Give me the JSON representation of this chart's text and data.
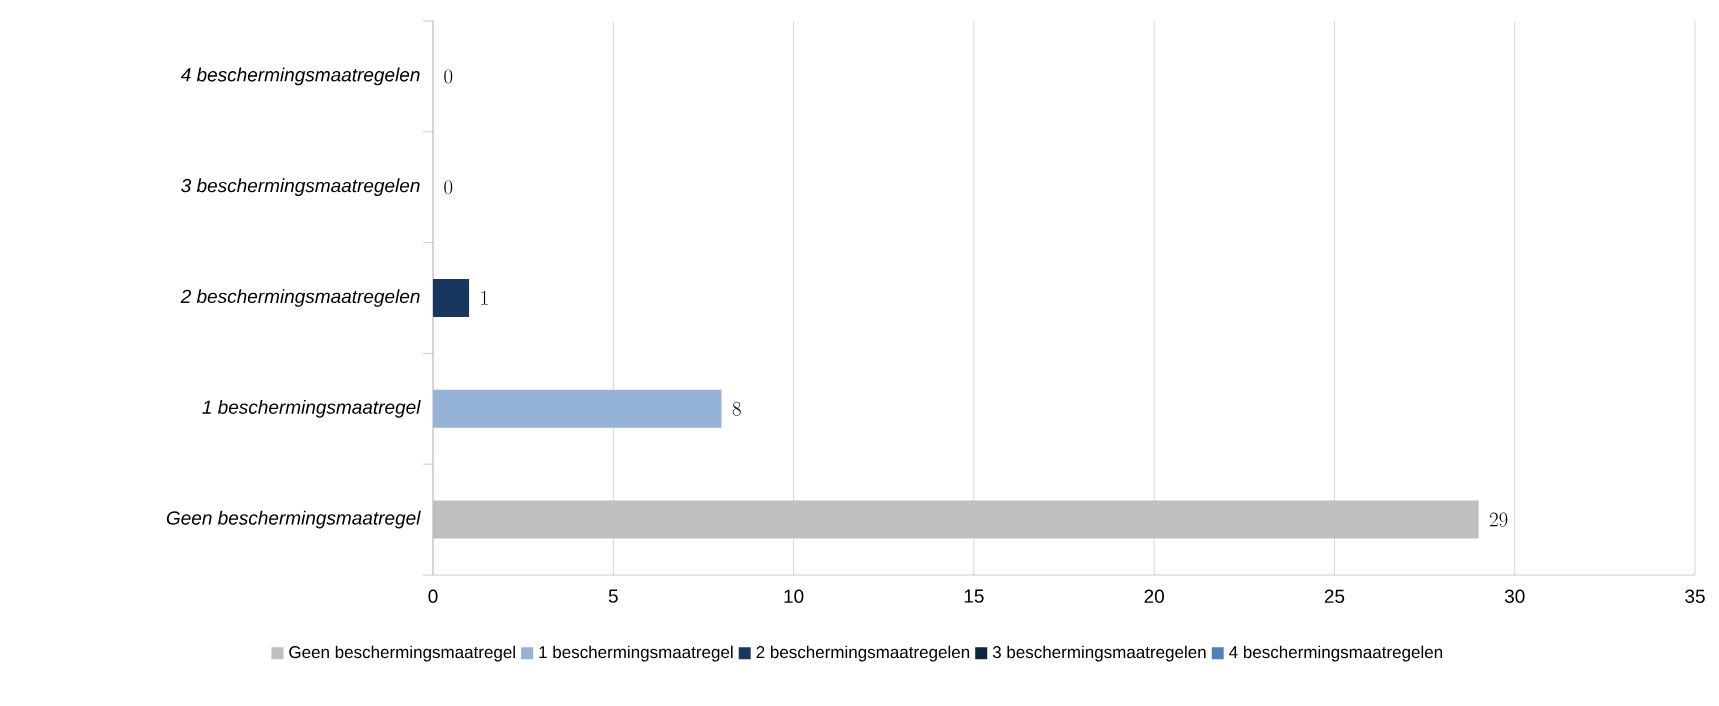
{
  "chart_data": {
    "type": "bar",
    "orientation": "horizontal",
    "stacked": true,
    "categories": [
      "4 beschermingsmaatregelen",
      "3 beschermingsmaatregelen",
      "2 beschermingsmaatregelen",
      "1 beschermingsmaatregel",
      "Geen beschermingsmaatregel"
    ],
    "series": [
      {
        "name": "Geen beschermingsmaatregel",
        "color": "#bfbfbf",
        "values": [
          null,
          null,
          null,
          null,
          29
        ]
      },
      {
        "name": "1 beschermingsmaatregel",
        "color": "#95b3d7",
        "values": [
          null,
          null,
          null,
          8,
          null
        ]
      },
      {
        "name": "2 beschermingsmaatregelen",
        "color": "#17375e",
        "values": [
          null,
          null,
          1,
          null,
          null
        ]
      },
      {
        "name": "3 beschermingsmaatregelen",
        "color": "#0f243e",
        "values": [
          null,
          0,
          null,
          null,
          null
        ]
      },
      {
        "name": "4 beschermingsmaatregelen",
        "color": "#4f81bd",
        "values": [
          0,
          null,
          null,
          null,
          null
        ]
      }
    ],
    "xlim": [
      0,
      35
    ],
    "xticks": [
      0,
      5,
      10,
      15,
      20,
      25,
      30,
      35
    ],
    "grid": "x",
    "data_labels": true,
    "legend": "bottom"
  }
}
